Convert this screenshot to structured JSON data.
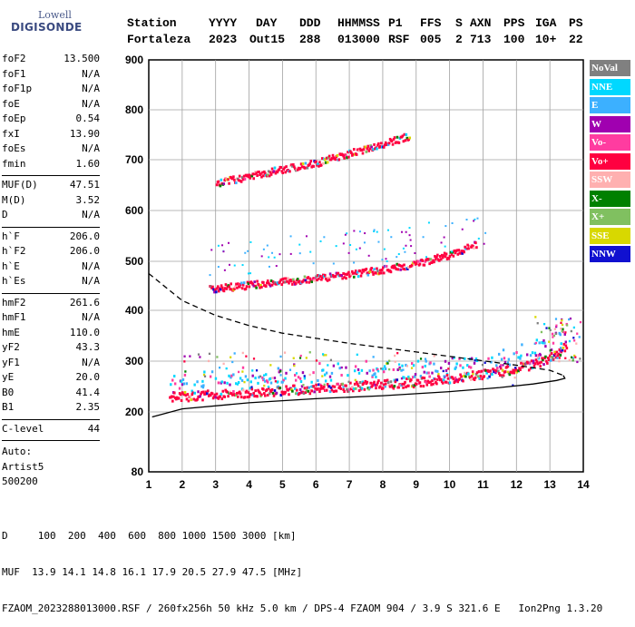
{
  "logo": {
    "line1": "Lowell",
    "line2": "DIGISONDE"
  },
  "header": {
    "labels": [
      "Station",
      "YYYY",
      "DAY",
      "DDD",
      "HHMMSS",
      "P1",
      "FFS",
      "S",
      "AXN",
      "PPS",
      "IGA",
      "PS"
    ],
    "values": [
      "Fortaleza",
      "2023",
      "Out15",
      "288",
      "013000",
      "RSF",
      "005",
      "2",
      "713",
      "100",
      "10+",
      "22"
    ]
  },
  "params": {
    "group1": [
      {
        "label": "foF2",
        "value": "13.500"
      },
      {
        "label": "foF1",
        "value": "N/A"
      },
      {
        "label": "foF1p",
        "value": "N/A"
      },
      {
        "label": "foE",
        "value": "N/A"
      },
      {
        "label": "foEp",
        "value": "0.54"
      },
      {
        "label": "fxI",
        "value": "13.90"
      },
      {
        "label": "foEs",
        "value": "N/A"
      },
      {
        "label": "fmin",
        "value": "1.60"
      }
    ],
    "group2": [
      {
        "label": "MUF(D)",
        "value": "47.51"
      },
      {
        "label": "M(D)",
        "value": "3.52"
      },
      {
        "label": "D",
        "value": "N/A"
      }
    ],
    "group3": [
      {
        "label": "h`F",
        "value": "206.0"
      },
      {
        "label": "h`F2",
        "value": "206.0"
      },
      {
        "label": "h`E",
        "value": "N/A"
      },
      {
        "label": "h`Es",
        "value": "N/A"
      }
    ],
    "group4": [
      {
        "label": "hmF2",
        "value": "261.6"
      },
      {
        "label": "hmF1",
        "value": "N/A"
      },
      {
        "label": "hmE",
        "value": "110.0"
      },
      {
        "label": "yF2",
        "value": "43.3"
      },
      {
        "label": "yF1",
        "value": "N/A"
      },
      {
        "label": "yE",
        "value": "20.0"
      },
      {
        "label": "B0",
        "value": "41.4"
      },
      {
        "label": "B1",
        "value": "2.35"
      }
    ],
    "clevel": {
      "label": "C-level",
      "value": "44"
    },
    "auto": [
      "Auto:",
      "Artist5",
      "500200"
    ]
  },
  "legend": [
    {
      "label": "NoVal",
      "color": "#808080"
    },
    {
      "label": "NNE",
      "color": "#00d8ff"
    },
    {
      "label": "E",
      "color": "#3cb0ff"
    },
    {
      "label": "W",
      "color": "#a000b0"
    },
    {
      "label": "Vo-",
      "color": "#ff3ca0"
    },
    {
      "label": "Vo+",
      "color": "#ff0040"
    },
    {
      "label": "SSW",
      "color": "#ffb0b0"
    },
    {
      "label": "X-",
      "color": "#008000"
    },
    {
      "label": "X+",
      "color": "#80c060"
    },
    {
      "label": "SSE",
      "color": "#d8d800"
    },
    {
      "label": "NNW",
      "color": "#1010d0"
    }
  ],
  "chart_data": {
    "type": "scatter",
    "x_ticks": [
      "1",
      "2",
      "3",
      "4",
      "5",
      "6",
      "7",
      "8",
      "9",
      "10",
      "11",
      "12",
      "13",
      "14"
    ],
    "y_ticks": [
      "80",
      "200",
      "300",
      "400",
      "500",
      "600",
      "700",
      "800",
      "900"
    ],
    "xlim": [
      1,
      14
    ],
    "y_tick_values": [
      80,
      200,
      300,
      400,
      500,
      600,
      700,
      800,
      900
    ],
    "y_scale": "piecewise-linear (80 at bottom, 200..900 evenly spaced)",
    "grid": true,
    "traces": [
      {
        "name": "o-trace 1st hop",
        "color": "#ff0040",
        "points": [
          [
            1.6,
            225
          ],
          [
            2.5,
            228
          ],
          [
            3.5,
            232
          ],
          [
            4.5,
            236
          ],
          [
            5.5,
            240
          ],
          [
            6.5,
            244
          ],
          [
            7.5,
            248
          ],
          [
            8.5,
            252
          ],
          [
            9.5,
            258
          ],
          [
            10.5,
            266
          ],
          [
            11.5,
            275
          ],
          [
            12.5,
            290
          ],
          [
            13.2,
            310
          ],
          [
            13.5,
            330
          ]
        ]
      },
      {
        "name": "o-trace 2nd hop",
        "color": "#ff0040",
        "points": [
          [
            2.8,
            440
          ],
          [
            4.0,
            448
          ],
          [
            5.0,
            455
          ],
          [
            6.0,
            462
          ],
          [
            7.0,
            470
          ],
          [
            8.0,
            480
          ],
          [
            9.0,
            492
          ],
          [
            10.0,
            510
          ],
          [
            10.8,
            530
          ]
        ]
      },
      {
        "name": "o-trace 3rd hop",
        "color": "#ff0040",
        "points": [
          [
            3.0,
            650
          ],
          [
            4.0,
            664
          ],
          [
            5.0,
            678
          ],
          [
            6.0,
            690
          ],
          [
            7.0,
            710
          ],
          [
            8.0,
            728
          ],
          [
            8.8,
            745
          ]
        ]
      }
    ],
    "profile_solid": {
      "color": "#000000",
      "points": [
        [
          1.1,
          190
        ],
        [
          2,
          206
        ],
        [
          4,
          218
        ],
        [
          6,
          226
        ],
        [
          8,
          232
        ],
        [
          10,
          240
        ],
        [
          11.5,
          248
        ],
        [
          12.5,
          255
        ],
        [
          13.2,
          262
        ],
        [
          13.45,
          266
        ],
        [
          13.4,
          272
        ]
      ]
    },
    "profile_dashed": {
      "color": "#000000",
      "points": [
        [
          1.0,
          475
        ],
        [
          2,
          420
        ],
        [
          3,
          390
        ],
        [
          4,
          370
        ],
        [
          5,
          355
        ],
        [
          7,
          335
        ],
        [
          9,
          318
        ],
        [
          10.5,
          305
        ],
        [
          12,
          292
        ],
        [
          13,
          282
        ],
        [
          13.4,
          272
        ]
      ]
    }
  },
  "footer": {
    "d_row": "D     100  200  400  600  800 1000 1500 3000 [km]",
    "muf_row": "MUF  13.9 14.1 14.8 16.1 17.9 20.5 27.9 47.5 [MHz]",
    "info_row": "FZAOM_2023288013000.RSF / 260fx256h 50 kHz 5.0 km / DPS-4 FZAOM 904 / 3.9 S 321.6 E   Ion2Png 1.3.20"
  }
}
